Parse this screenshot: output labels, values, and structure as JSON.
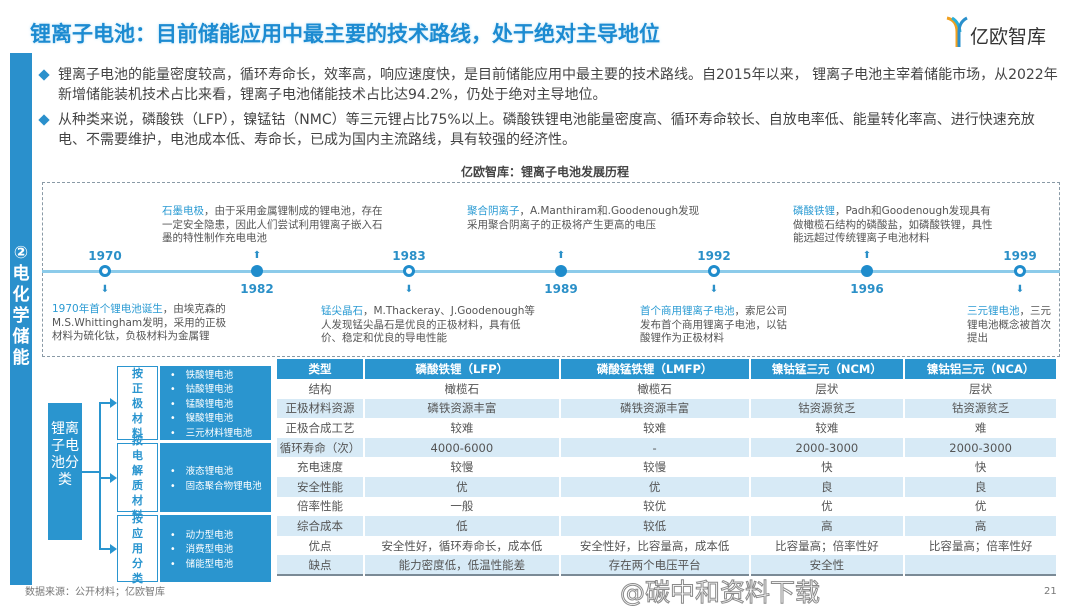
{
  "title": "锂离子电池：目前储能应用中最主要的技术路线，处于绝对主导地位",
  "logo": {
    "text": "亿欧智库",
    "icon": "yiou-logo-icon"
  },
  "sidebar": {
    "label": "②电化学储能"
  },
  "bullets": [
    "锂离子电池的能量密度较高，循环寿命长，效率高，响应速度快，是目前储能应用中最主要的技术路线。自2015年以来， 锂离子电池主宰着储能市场，从2022年新增储能装机技术占比来看，锂离子电池储能技术占比达94.2%，仍处于绝对主导地位。",
    "从种类来说，磷酸铁（LFP），镍锰钴（NMC）等三元锂占比75%以上。磷酸铁锂电池能量密度高、循环寿命较长、自放电率低、能量转化率高、进行快速充放电、不需要维护，电池成本低、寿命长，已成为国内主流路线，具有较强的经济性。"
  ],
  "timeline": {
    "title": "亿欧智库：锂离子电池发展历程",
    "events": [
      {
        "year": "1970",
        "highlight": "1970年首个锂电池诞生",
        "text": "，由埃克森的M.S.Whittingham发明，采用的正极材料为硫化钛，负极材料为金属锂"
      },
      {
        "year": "1982",
        "highlight": "石墨电极",
        "text": "，由于采用金属锂制成的锂电池，存在一定安全隐患，因此人们尝试利用锂离子嵌入石墨的特性制作充电电池"
      },
      {
        "year": "1983",
        "highlight": "锰尖晶石",
        "text": "，M.Thackeray、J.Goodenough等人发现锰尖晶石是优良的正极材料，具有低价、稳定和优良的导电性能"
      },
      {
        "year": "1989",
        "highlight": "聚合阴离子",
        "text": "，A.Manthiram和.Goodenough发现采用聚合阴离子的正极将产生更高的电压"
      },
      {
        "year": "1992",
        "highlight": "首个商用锂离子电池",
        "text": "，索尼公司发布首个商用锂离子电池，以钴酸锂作为正极材料"
      },
      {
        "year": "1996",
        "highlight": "磷酸铁锂",
        "text": "，Padh和Goodenough发现具有做橄榄石结构的磷酸盐，如磷酸铁锂，具性能远超过传统锂离子电池材料"
      },
      {
        "year": "1999",
        "highlight": "三元锂电池",
        "text": "，三元锂电池概念被首次提出"
      }
    ]
  },
  "classification": {
    "root": "锂离子电池分类",
    "groups": [
      {
        "label": "按正极材料",
        "items": [
          "铁酸锂电池",
          "钴酸锂电池",
          "锰酸锂电池",
          "镍酸锂电池",
          "三元材料锂电池"
        ]
      },
      {
        "label": "按电解质材料",
        "items": [
          "液态锂电池",
          "固态聚合物锂电池"
        ]
      },
      {
        "label": "按应用分类",
        "items": [
          "动力型电池",
          "消费型电池",
          "储能型电池"
        ]
      }
    ]
  },
  "table": {
    "headers": [
      "类型",
      "磷酸铁锂（LFP）",
      "磷酸锰铁锂（LMFP）",
      "镍钴锰三元（NCM）",
      "镍钴铝三元（NCA）"
    ],
    "rows": [
      [
        "结构",
        "橄榄石",
        "橄榄石",
        "层状",
        "层状"
      ],
      [
        "正极材料资源",
        "磷铁资源丰富",
        "磷铁资源丰富",
        "钴资源贫乏",
        "钴资源贫乏"
      ],
      [
        "正极合成工艺",
        "较难",
        "较难",
        "较难",
        "难"
      ],
      [
        "循环寿命（次）",
        "4000-6000",
        "-",
        "2000-3000",
        "2000-3000"
      ],
      [
        "充电速度",
        "较慢",
        "较慢",
        "快",
        "快"
      ],
      [
        "安全性能",
        "优",
        "优",
        "良",
        "良"
      ],
      [
        "倍率性能",
        "一般",
        "较优",
        "优",
        "优"
      ],
      [
        "综合成本",
        "低",
        "较低",
        "高",
        "高"
      ],
      [
        "优点",
        "安全性好，循环寿命长，成本低",
        "安全性好，比容量高，成本低",
        "比容量高；倍率性好",
        "比容量高；倍率性好"
      ],
      [
        "缺点",
        "能力密度低，低温性能差",
        "存在两个电压平台",
        "安全性",
        ""
      ]
    ]
  },
  "footer": {
    "source": "数据来源：公开材料；亿欧智库",
    "page": "21"
  },
  "watermark": "@碳中和资料下载",
  "colors": {
    "accent": "#2a90cc",
    "timeline_line": "#8ccbea",
    "row_alt": "#d7eaf6"
  }
}
